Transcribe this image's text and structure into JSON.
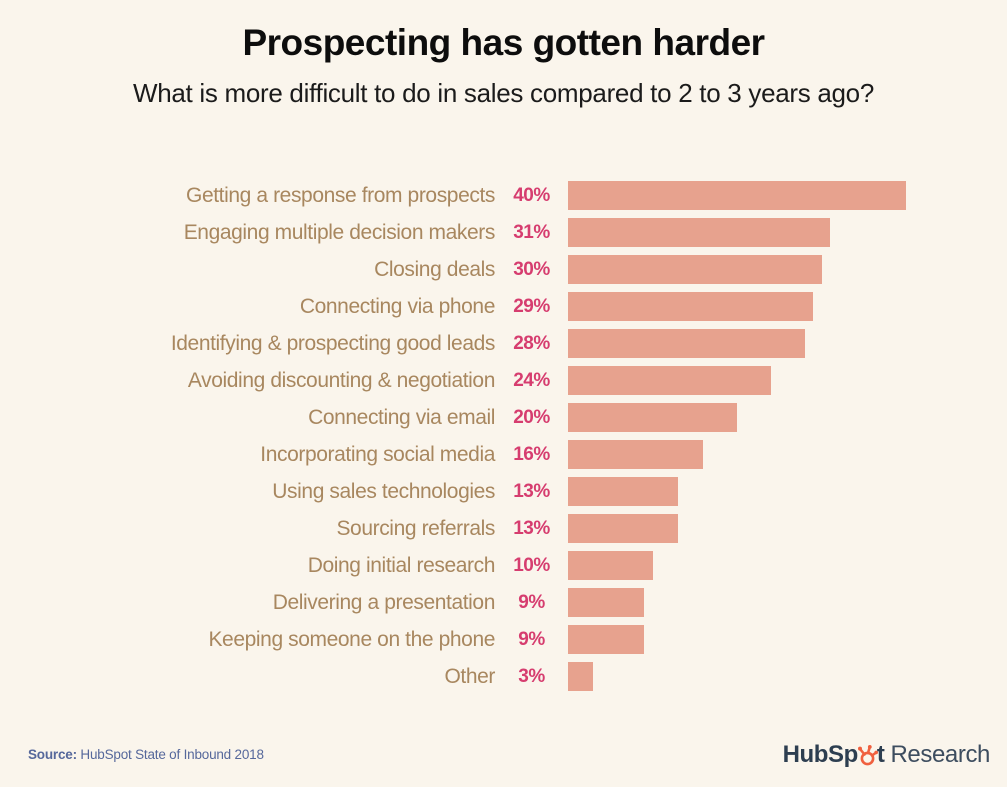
{
  "title": "Prospecting has gotten harder",
  "subtitle": "What is more difficult to do in sales compared to 2 to 3 years ago?",
  "source": {
    "label": "Source:",
    "text": " HubSpot State of Inbound 2018"
  },
  "logo": {
    "part1": "HubSp",
    "part2": "t",
    "suffix": "Research"
  },
  "colors": {
    "background": "#faf5ec",
    "bar": "#e7a28e",
    "category_label": "#a8875f",
    "percent_label": "#d63d6f",
    "title_text": "#0d0d0d",
    "source_text": "#56689b",
    "logo_dark": "#2d3e50",
    "logo_orange": "#f0603f"
  },
  "chart_data": {
    "type": "bar",
    "orientation": "horizontal",
    "title": "Prospecting has gotten harder",
    "subtitle": "What is more difficult to do in sales compared to 2 to 3 years ago?",
    "xlabel": "",
    "ylabel": "",
    "xlim": [
      0,
      40
    ],
    "grid": false,
    "legend": false,
    "bar_color": "#e7a28e",
    "categories": [
      "Getting a response from prospects",
      "Engaging multiple decision makers",
      "Closing deals",
      "Connecting via phone",
      "Identifying & prospecting good leads",
      "Avoiding discounting & negotiation",
      "Connecting via email",
      "Incorporating social media",
      "Using sales technologies",
      "Sourcing referrals",
      "Doing initial research",
      "Delivering a presentation",
      "Keeping someone on the phone",
      "Other"
    ],
    "values": [
      40,
      31,
      30,
      29,
      28,
      24,
      20,
      16,
      13,
      13,
      10,
      9,
      9,
      3
    ],
    "value_labels": [
      "40%",
      "31%",
      "30%",
      "29%",
      "28%",
      "24%",
      "20%",
      "16%",
      "13%",
      "13%",
      "10%",
      "9%",
      "9%",
      "3%"
    ]
  }
}
